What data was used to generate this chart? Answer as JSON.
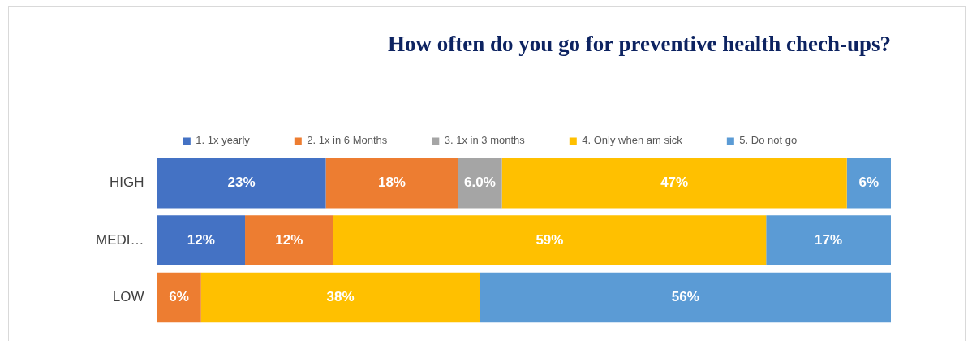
{
  "chart_data": {
    "type": "bar",
    "orientation": "horizontal",
    "stacked": true,
    "title": "How often do you go for preventive health chech-ups?",
    "categories": [
      "HIGH",
      "MEDI…",
      "LOW"
    ],
    "series": [
      {
        "name": "1. 1x yearly",
        "color": "#4472c4",
        "values": [
          23,
          12,
          0
        ],
        "value_labels": [
          "23%",
          "12%",
          null
        ]
      },
      {
        "name": "2. 1x in 6 Months",
        "color": "#ed7d31",
        "values": [
          18,
          12,
          6
        ],
        "value_labels": [
          "18%",
          "12%",
          "6%"
        ]
      },
      {
        "name": "3. 1x in 3 months",
        "color": "#a5a5a5",
        "values": [
          6.0,
          0,
          0
        ],
        "value_labels": [
          "6.0%",
          null,
          null
        ]
      },
      {
        "name": "4. Only when am sick",
        "color": "#ffc000",
        "values": [
          47,
          59,
          38
        ],
        "value_labels": [
          "47%",
          "59%",
          "38%"
        ]
      },
      {
        "name": "5. Do not go",
        "color": "#5b9bd5",
        "values": [
          6,
          17,
          56
        ],
        "value_labels": [
          "6%",
          "17%",
          "56%"
        ]
      }
    ],
    "xlim": [
      0,
      100
    ],
    "tick_labels": "y",
    "grid": false,
    "legend": "top"
  }
}
